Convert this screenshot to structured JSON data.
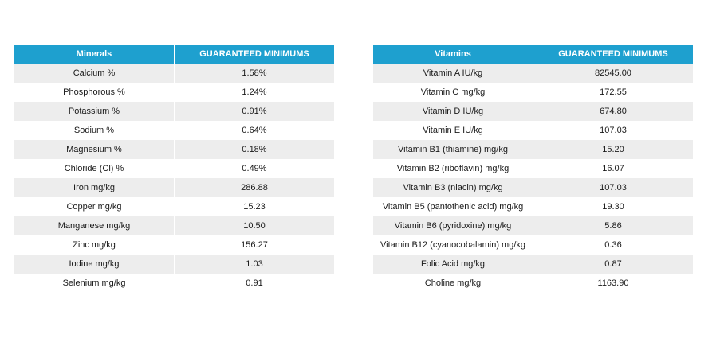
{
  "minerals": {
    "header_name": "Minerals",
    "header_value": "GUARANTEED MINIMUMS",
    "rows": [
      {
        "name": "Calcium %",
        "value": "1.58%"
      },
      {
        "name": "Phosphorous %",
        "value": "1.24%"
      },
      {
        "name": "Potassium %",
        "value": "0.91%"
      },
      {
        "name": "Sodium %",
        "value": "0.64%"
      },
      {
        "name": "Magnesium %",
        "value": "0.18%"
      },
      {
        "name": "Chloride (Cl) %",
        "value": "0.49%"
      },
      {
        "name": "Iron mg/kg",
        "value": "286.88"
      },
      {
        "name": "Copper mg/kg",
        "value": "15.23"
      },
      {
        "name": "Manganese mg/kg",
        "value": "10.50"
      },
      {
        "name": "Zinc mg/kg",
        "value": "156.27"
      },
      {
        "name": "Iodine mg/kg",
        "value": "1.03"
      },
      {
        "name": "Selenium mg/kg",
        "value": "0.91"
      }
    ]
  },
  "vitamins": {
    "header_name": "Vitamins",
    "header_value": "GUARANTEED MINIMUMS",
    "rows": [
      {
        "name": "Vitamin A IU/kg",
        "value": "82545.00"
      },
      {
        "name": "Vitamin C mg/kg",
        "value": "172.55"
      },
      {
        "name": "Vitamin D IU/kg",
        "value": "674.80"
      },
      {
        "name": "Vitamin E IU/kg",
        "value": "107.03"
      },
      {
        "name": "Vitamin B1 (thiamine) mg/kg",
        "value": "15.20"
      },
      {
        "name": "Vitamin B2 (riboflavin) mg/kg",
        "value": "16.07"
      },
      {
        "name": "Vitamin B3 (niacin) mg/kg",
        "value": "107.03"
      },
      {
        "name": "Vitamin B5 (pantothenic acid) mg/kg",
        "value": "19.30"
      },
      {
        "name": "Vitamin B6 (pyridoxine) mg/kg",
        "value": "5.86"
      },
      {
        "name": "Vitamin B12 (cyanocobalamin) mg/kg",
        "value": "0.36"
      },
      {
        "name": "Folic Acid mg/kg",
        "value": "0.87"
      },
      {
        "name": "Choline mg/kg",
        "value": "1163.90"
      }
    ]
  },
  "colors": {
    "header_bg": "#1ea0cf",
    "stripe_bg": "#ededed"
  }
}
